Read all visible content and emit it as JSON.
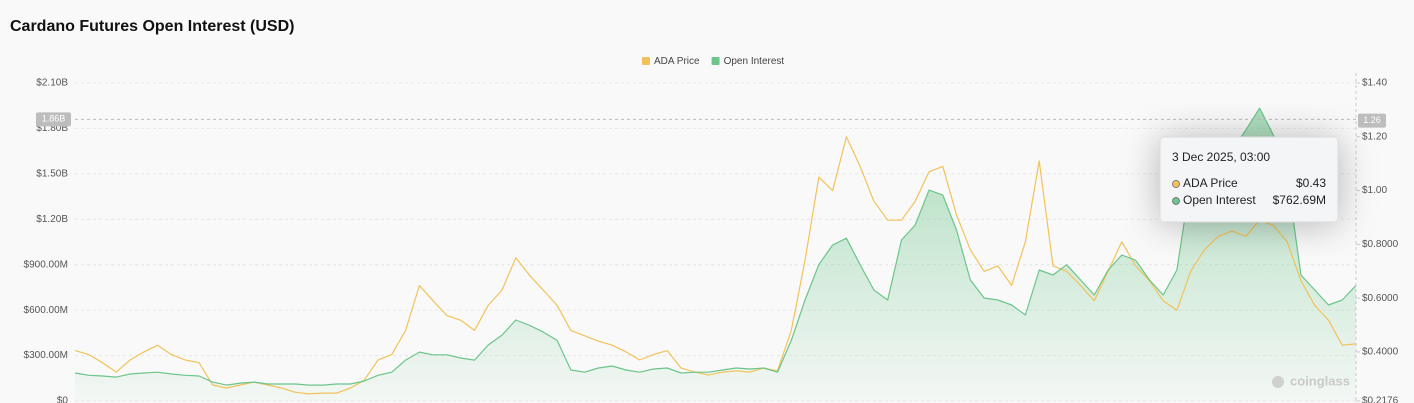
{
  "chart_data": {
    "type": "line",
    "title": "Cardano Futures Open Interest (USD)",
    "grid": true,
    "legend": "top",
    "watermark": "coinglass",
    "series": [
      {
        "name": "ADA Price",
        "color": "#f2c25a",
        "axis": "y2",
        "values": [
          0.405,
          0.39,
          0.36,
          0.325,
          0.37,
          0.4,
          0.425,
          0.39,
          0.37,
          0.36,
          0.277,
          0.266,
          0.277,
          0.288,
          0.277,
          0.266,
          0.25,
          0.244,
          0.247,
          0.247,
          0.266,
          0.295,
          0.37,
          0.39,
          0.48,
          0.647,
          0.59,
          0.535,
          0.518,
          0.48,
          0.573,
          0.63,
          0.75,
          0.685,
          0.63,
          0.573,
          0.48,
          0.46,
          0.44,
          0.425,
          0.4,
          0.37,
          0.39,
          0.405,
          0.34,
          0.325,
          0.314,
          0.325,
          0.33,
          0.325,
          0.34,
          0.33,
          0.48,
          0.74,
          1.05,
          1.0,
          1.2,
          1.09,
          0.96,
          0.89,
          0.89,
          0.96,
          1.07,
          1.09,
          0.91,
          0.78,
          0.7,
          0.72,
          0.647,
          0.81,
          1.11,
          0.72,
          0.7,
          0.647,
          0.59,
          0.7,
          0.81,
          0.72,
          0.665,
          0.59,
          0.555,
          0.7,
          0.78,
          0.83,
          0.85,
          0.83,
          0.89,
          0.87,
          0.81,
          0.665,
          0.573,
          0.518,
          0.425,
          0.43
        ]
      },
      {
        "name": "Open Interest",
        "color": "#6cc58a",
        "values": [
          185,
          170,
          165,
          158,
          178,
          185,
          190,
          178,
          170,
          165,
          125,
          105,
          118,
          125,
          112,
          112,
          112,
          105,
          105,
          112,
          112,
          132,
          170,
          190,
          270,
          323,
          305,
          305,
          284,
          270,
          370,
          435,
          535,
          500,
          455,
          400,
          205,
          190,
          218,
          231,
          205,
          190,
          211,
          218,
          185,
          190,
          190,
          205,
          218,
          211,
          218,
          190,
          400,
          667,
          900,
          1030,
          1075,
          900,
          733,
          667,
          1063,
          1162,
          1393,
          1360,
          1129,
          800,
          680,
          667,
          634,
          568,
          865,
          832,
          900,
          800,
          700,
          865,
          964,
          930,
          800,
          700,
          865,
          1460,
          1657,
          1690,
          1657,
          1789,
          1934,
          1756,
          1492,
          832,
          733,
          634,
          667,
          762.69
        ]
      }
    ],
    "ylim": [
      0,
      2100
    ],
    "yticks": [
      {
        "value": 0,
        "label": "$0"
      },
      {
        "value": 300,
        "label": "$300.00M"
      },
      {
        "value": 600,
        "label": "$600.00M"
      },
      {
        "value": 900,
        "label": "$900.00M"
      },
      {
        "value": 1200,
        "label": "$1.20B"
      },
      {
        "value": 1500,
        "label": "$1.50B"
      },
      {
        "value": 1800,
        "label": "$1.80B"
      },
      {
        "value": 2100,
        "label": "$2.10B"
      }
    ],
    "y2lim": [
      0.2176,
      1.4
    ],
    "y2ticks": [
      {
        "value": 0.2176,
        "label": "$0.2176"
      },
      {
        "value": 0.4,
        "label": "$0.4000"
      },
      {
        "value": 0.6,
        "label": "$0.6000"
      },
      {
        "value": 0.8,
        "label": "$0.8000"
      },
      {
        "value": 1.0,
        "label": "$1.00"
      },
      {
        "value": 1.2,
        "label": "$1.20"
      },
      {
        "value": 1.4,
        "label": "$1.40"
      }
    ],
    "crosshair": {
      "y": {
        "value": 1860,
        "label": "1.86B"
      },
      "y2": 1.26
    },
    "tooltip": {
      "title": "3 Dec 2025, 03:00",
      "items": [
        {
          "name": "ADA Price",
          "value": 0.43,
          "label": "$0.43"
        },
        {
          "name": "Open Interest",
          "value": 762.69,
          "label": "$762.69M"
        }
      ]
    }
  }
}
